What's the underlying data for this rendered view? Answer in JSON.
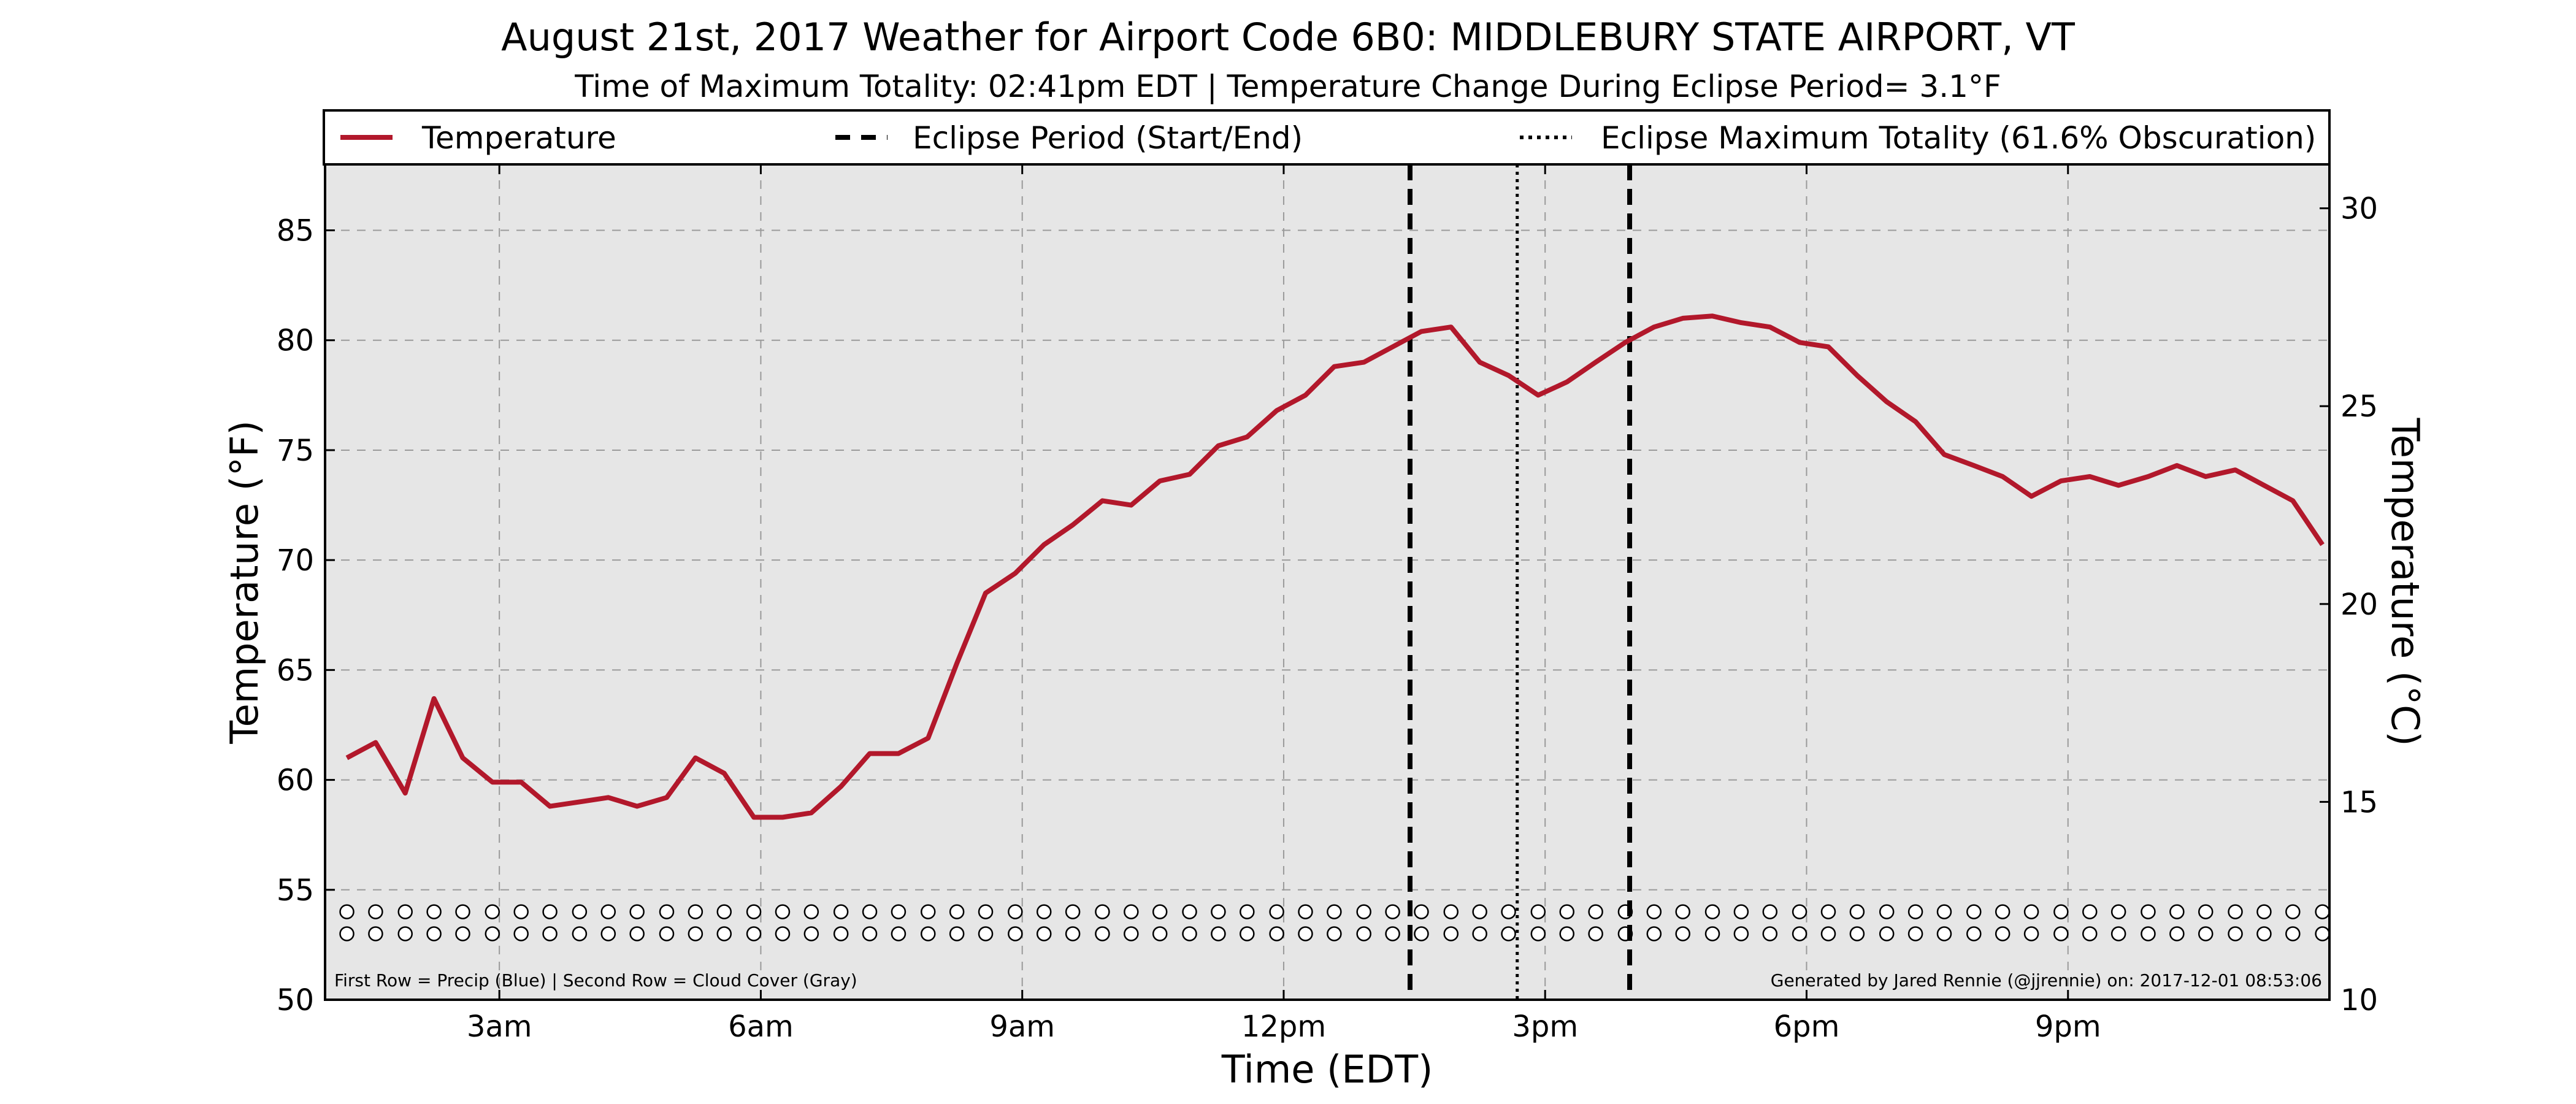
{
  "chart_data": {
    "type": "line",
    "title": "August 21st, 2017 Weather for Airport Code 6B0: MIDDLEBURY STATE AIRPORT, VT",
    "subtitle": "Time of Maximum Totality: 02:41pm EDT | Temperature Change During Eclipse Period= 3.1°F",
    "xlabel": "Time (EDT)",
    "ylabel": "Temperature (°F)",
    "ylabel_right": "Temperature (°C)",
    "x_unit": "hour of day (EDT)",
    "xlim": [
      1.0,
      24.0
    ],
    "ylim": [
      50,
      88
    ],
    "ylim_right": [
      10,
      31.11
    ],
    "x_ticks": [
      {
        "value": 3,
        "label": "3am"
      },
      {
        "value": 6,
        "label": "6am"
      },
      {
        "value": 9,
        "label": "9am"
      },
      {
        "value": 12,
        "label": "12pm"
      },
      {
        "value": 15,
        "label": "3pm"
      },
      {
        "value": 18,
        "label": "6pm"
      },
      {
        "value": 21,
        "label": "9pm"
      }
    ],
    "y_ticks": [
      50,
      55,
      60,
      65,
      70,
      75,
      80,
      85
    ],
    "y_ticks_right": [
      10,
      15,
      20,
      25,
      30
    ],
    "grid": true,
    "legend_position": "top",
    "legend": [
      {
        "label": "Temperature",
        "style": "solid",
        "color": "#b2182b"
      },
      {
        "label": "Eclipse Period (Start/End)",
        "style": "dashed",
        "color": "#000000"
      },
      {
        "label": "Eclipse Maximum Totality (61.6% Obscuration)",
        "style": "dotted",
        "color": "#000000"
      }
    ],
    "eclipse_start": 13.45,
    "eclipse_max": 14.68,
    "eclipse_end": 15.97,
    "series": [
      {
        "name": "Temperature",
        "color": "#b2182b",
        "x": [
          1.25,
          1.58,
          1.92,
          2.25,
          2.58,
          2.92,
          3.25,
          3.58,
          3.92,
          4.25,
          4.58,
          4.92,
          5.25,
          5.58,
          5.92,
          6.25,
          6.58,
          6.92,
          7.25,
          7.58,
          7.92,
          8.25,
          8.58,
          8.92,
          9.25,
          9.58,
          9.92,
          10.25,
          10.58,
          10.92,
          11.25,
          11.58,
          11.92,
          12.25,
          12.58,
          12.92,
          13.25,
          13.58,
          13.92,
          14.25,
          14.58,
          14.92,
          15.25,
          15.58,
          15.92,
          16.25,
          16.58,
          16.92,
          17.25,
          17.58,
          17.92,
          18.25,
          18.58,
          18.92,
          19.25,
          19.58,
          19.92,
          20.25,
          20.58,
          20.92,
          21.25,
          21.58,
          21.92,
          22.25,
          22.58,
          22.92,
          23.25,
          23.58,
          23.92
        ],
        "y": [
          61.0,
          61.7,
          59.4,
          63.7,
          61.0,
          59.9,
          59.9,
          58.8,
          59.0,
          59.2,
          58.8,
          59.2,
          61.0,
          60.3,
          58.3,
          58.3,
          58.5,
          59.7,
          61.2,
          61.2,
          61.9,
          65.3,
          68.5,
          69.4,
          70.7,
          71.6,
          72.7,
          72.5,
          73.6,
          73.9,
          75.2,
          75.6,
          76.8,
          77.5,
          78.8,
          79.0,
          79.7,
          80.4,
          80.6,
          79.0,
          78.4,
          77.5,
          78.1,
          79.0,
          79.9,
          80.6,
          81.0,
          81.1,
          80.8,
          80.6,
          79.9,
          79.7,
          78.4,
          77.2,
          76.3,
          74.8,
          74.3,
          73.8,
          72.9,
          73.6,
          73.8,
          73.4,
          73.8,
          74.3,
          73.8,
          74.1,
          73.4,
          72.7,
          70.7
        ]
      }
    ],
    "indicator_rows": {
      "times": [
        1.25,
        1.58,
        1.92,
        2.25,
        2.58,
        2.92,
        3.25,
        3.58,
        3.92,
        4.25,
        4.58,
        4.92,
        5.25,
        5.58,
        5.92,
        6.25,
        6.58,
        6.92,
        7.25,
        7.58,
        7.92,
        8.25,
        8.58,
        8.92,
        9.25,
        9.58,
        9.92,
        10.25,
        10.58,
        10.92,
        11.25,
        11.58,
        11.92,
        12.25,
        12.58,
        12.92,
        13.25,
        13.58,
        13.92,
        14.25,
        14.58,
        14.92,
        15.25,
        15.58,
        15.92,
        16.25,
        16.58,
        16.92,
        17.25,
        17.58,
        17.92,
        18.25,
        18.58,
        18.92,
        19.25,
        19.58,
        19.92,
        20.25,
        20.58,
        20.92,
        21.25,
        21.58,
        21.92,
        22.25,
        22.58,
        22.92,
        23.25,
        23.58,
        23.92
      ],
      "precip_y": 54,
      "cloud_y": 53,
      "precip_color": "#ffffff",
      "cloud_color": "#ffffff"
    },
    "annotation_left": "First Row = Precip (Blue) | Second Row = Cloud Cover (Gray)",
    "annotation_right": "Generated by Jared Rennie (@jjrennie) on: 2017-12-01 08:53:06"
  }
}
